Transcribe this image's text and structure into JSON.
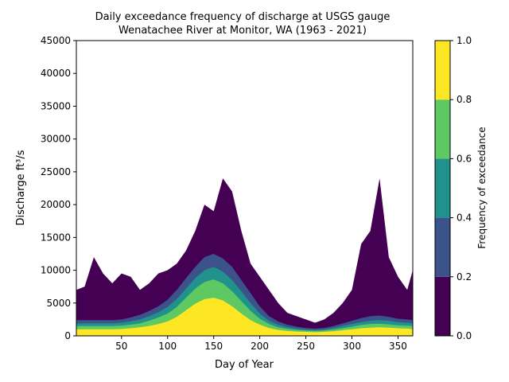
{
  "chart_data": {
    "type": "area",
    "title_line1": "Daily exceedance frequency of discharge at USGS gauge",
    "title_line2": "Wenatachee River at Monitor, WA (1963 - 2021)",
    "xlabel": "Day of Year",
    "ylabel": "Discharge ft³/s",
    "xlim": [
      1,
      366
    ],
    "ylim": [
      0,
      45000
    ],
    "x_ticks": [
      50,
      100,
      150,
      200,
      250,
      300,
      350
    ],
    "y_ticks": [
      0,
      5000,
      10000,
      15000,
      20000,
      25000,
      30000,
      35000,
      40000,
      45000
    ],
    "grid": false,
    "colorbar": {
      "label": "Frequency of exceedance",
      "ticks": [
        "0.0",
        "0.2",
        "0.4",
        "0.6",
        "0.8",
        "1.0"
      ],
      "bands": [
        {
          "range": [
            0.0,
            0.2
          ],
          "color": "#440154"
        },
        {
          "range": [
            0.2,
            0.4
          ],
          "color": "#3b528b"
        },
        {
          "range": [
            0.4,
            0.6
          ],
          "color": "#21918c"
        },
        {
          "range": [
            0.6,
            0.8
          ],
          "color": "#5ec962"
        },
        {
          "range": [
            0.8,
            1.0
          ],
          "color": "#fde725"
        }
      ]
    },
    "series_note_days": [
      1,
      10,
      20,
      30,
      40,
      50,
      60,
      70,
      80,
      90,
      100,
      110,
      120,
      130,
      140,
      150,
      160,
      170,
      180,
      190,
      200,
      210,
      220,
      230,
      240,
      250,
      260,
      270,
      280,
      290,
      300,
      310,
      320,
      330,
      340,
      350,
      360,
      366
    ],
    "series": [
      {
        "band": "exceedance 0.0-0.2 upper envelope",
        "color": "#440154",
        "values": [
          7000,
          7500,
          12000,
          9500,
          8000,
          9500,
          9000,
          7000,
          8000,
          9500,
          10000,
          11000,
          13000,
          16000,
          20000,
          19000,
          24000,
          22000,
          16000,
          11000,
          9000,
          7000,
          5000,
          3500,
          3000,
          2500,
          2000,
          2500,
          3500,
          5000,
          7000,
          14000,
          16000,
          24000,
          12000,
          9000,
          7000,
          10000
        ]
      },
      {
        "band": "exceedance 0.2-0.4 upper",
        "color": "#3b528b",
        "values": [
          2400,
          2400,
          2400,
          2400,
          2400,
          2500,
          2800,
          3200,
          3800,
          4500,
          5500,
          7000,
          8800,
          10500,
          12000,
          12500,
          11800,
          10500,
          8500,
          6500,
          4500,
          3000,
          2200,
          1700,
          1400,
          1200,
          1100,
          1200,
          1500,
          1900,
          2300,
          2700,
          3000,
          3100,
          2900,
          2600,
          2500,
          2400
        ]
      },
      {
        "band": "exceedance 0.4-0.6 upper",
        "color": "#21918c",
        "values": [
          1900,
          1900,
          1900,
          1900,
          1900,
          2000,
          2200,
          2500,
          3000,
          3600,
          4400,
          5600,
          7200,
          8800,
          10000,
          10500,
          9800,
          8500,
          6800,
          5000,
          3400,
          2300,
          1700,
          1300,
          1100,
          950,
          900,
          950,
          1200,
          1500,
          1800,
          2100,
          2300,
          2400,
          2300,
          2100,
          2000,
          1900
        ]
      },
      {
        "band": "exceedance 0.6-0.8 upper",
        "color": "#5ec962",
        "values": [
          1500,
          1500,
          1500,
          1500,
          1500,
          1550,
          1700,
          1900,
          2300,
          2800,
          3400,
          4400,
          5800,
          7200,
          8200,
          8600,
          8000,
          6800,
          5300,
          3800,
          2600,
          1800,
          1300,
          1050,
          900,
          800,
          750,
          800,
          950,
          1150,
          1400,
          1650,
          1800,
          1850,
          1750,
          1600,
          1550,
          1500
        ]
      },
      {
        "band": "exceedance 0.8-1.0 upper",
        "color": "#fde725",
        "values": [
          1000,
          1000,
          1000,
          1000,
          1000,
          1050,
          1150,
          1300,
          1500,
          1800,
          2200,
          2900,
          3900,
          4900,
          5600,
          5800,
          5400,
          4500,
          3400,
          2400,
          1700,
          1200,
          900,
          750,
          650,
          600,
          550,
          600,
          700,
          850,
          1000,
          1150,
          1250,
          1300,
          1250,
          1150,
          1100,
          1000
        ]
      }
    ]
  }
}
